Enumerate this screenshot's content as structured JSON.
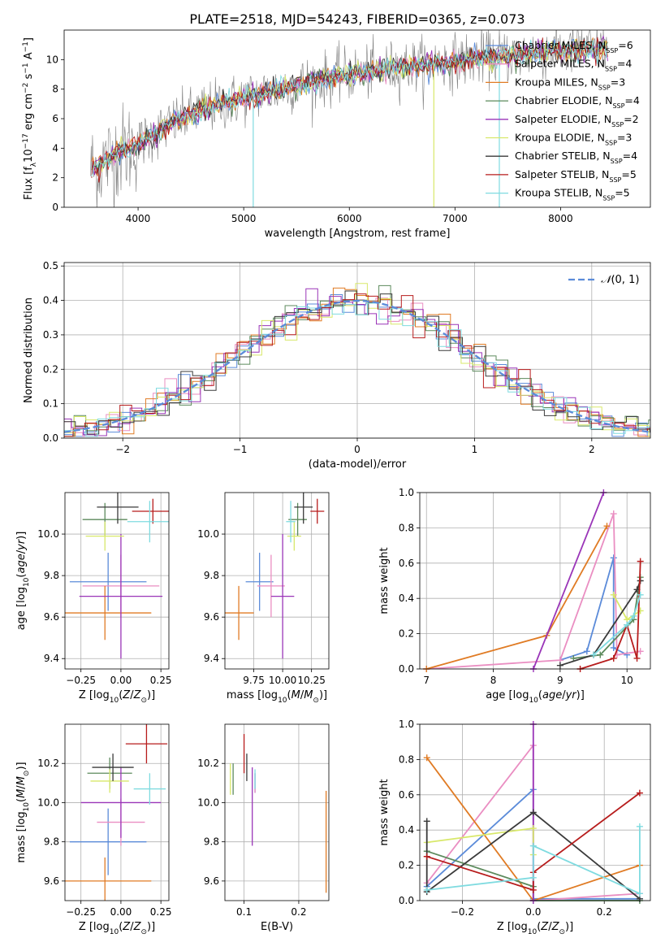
{
  "title": "PLATE=2518, MJD=54243, FIBERID=0365, z=0.073",
  "colors": {
    "Chabrier MILES": "#5b8bd9",
    "Salpeter MILES": "#ea8ec2",
    "Kroupa MILES": "#e07b24",
    "Chabrier ELODIE": "#5c8a5c",
    "Salpeter ELODIE": "#9a35b8",
    "Kroupa ELODIE": "#d8e86a",
    "Chabrier STELIB": "#3a3a3a",
    "Salpeter STELIB": "#b71c1c",
    "Kroupa STELIB": "#7fdbe0",
    "data": "#808080",
    "gauss": "#5b8bd9"
  },
  "chart_data": [
    {
      "id": "spectrum",
      "type": "line",
      "xlabel": "wavelength [Angstrom, rest frame]",
      "ylabel": "Flux [f_λ 10^-17 erg cm^-2 s^-1 A^-1]",
      "xlim": [
        3300,
        8850
      ],
      "ylim": [
        0,
        12
      ],
      "xticks": [
        4000,
        5000,
        6000,
        7000,
        8000
      ],
      "yticks": [
        0,
        2,
        4,
        6,
        8,
        10
      ],
      "grid": false,
      "legend_position": "upper right",
      "legend": [
        "Chabrier MILES, N_SSP=6",
        "Salpeter MILES, N_SSP=4",
        "Kroupa MILES, N_SSP=3",
        "Chabrier ELODIE, N_SSP=4",
        "Salpeter ELODIE, N_SSP=2",
        "Kroupa ELODIE, N_SSP=3",
        "Chabrier STELIB, N_SSP=4",
        "Salpeter STELIB, N_SSP=5",
        "Kroupa STELIB, N_SSP=5"
      ],
      "continuum_model": [
        [
          3550,
          2.6
        ],
        [
          3650,
          2.9
        ],
        [
          3800,
          3.7
        ],
        [
          3950,
          4.1
        ],
        [
          4100,
          4.7
        ],
        [
          4300,
          5.6
        ],
        [
          4600,
          6.6
        ],
        [
          5000,
          7.4
        ],
        [
          5500,
          8.3
        ],
        [
          6000,
          9.0
        ],
        [
          6500,
          9.5
        ],
        [
          7000,
          9.9
        ],
        [
          7500,
          10.3
        ],
        [
          8000,
          10.6
        ],
        [
          8450,
          10.8
        ]
      ]
    },
    {
      "id": "residuals",
      "type": "histogram",
      "xlabel": "(data-model)/error",
      "ylabel": "Normed distribution",
      "xlim": [
        -2.5,
        2.5
      ],
      "ylim": [
        0,
        0.51
      ],
      "xticks": [
        -2,
        -1,
        0,
        1,
        2
      ],
      "yticks": [
        0.0,
        0.1,
        0.2,
        0.3,
        0.4,
        0.5
      ],
      "grid": true,
      "legend_position": "upper right",
      "legend": [
        "N(0, 1)"
      ],
      "bin_width": 0.1
    },
    {
      "id": "age-vs-Z",
      "type": "errorbar",
      "xlabel": "Z [log10(Z/Z⊙)]",
      "ylabel": "age [log10(age/yr)]",
      "xlim": [
        -0.35,
        0.3
      ],
      "ylim": [
        9.35,
        10.2
      ],
      "xticks": [
        -0.25,
        0.0,
        0.25
      ],
      "yticks": [
        9.4,
        9.6,
        9.8,
        10.0
      ],
      "grid": true,
      "points": [
        {
          "model": "Chabrier MILES",
          "x": -0.08,
          "xerr": 0.24,
          "y": 9.77,
          "yerr": 0.14
        },
        {
          "model": "Salpeter MILES",
          "x": 0.0,
          "xerr": 0.24,
          "y": 9.75,
          "yerr": 0.15
        },
        {
          "model": "Kroupa MILES",
          "x": -0.1,
          "xerr": 0.29,
          "y": 9.62,
          "yerr": 0.13
        },
        {
          "model": "Chabrier ELODIE",
          "x": -0.1,
          "xerr": 0.14,
          "y": 10.07,
          "yerr": 0.08
        },
        {
          "model": "Salpeter ELODIE",
          "x": 0.0,
          "xerr": 0.26,
          "y": 9.7,
          "yerr": 0.3
        },
        {
          "model": "Kroupa ELODIE",
          "x": -0.1,
          "xerr": 0.12,
          "y": 9.99,
          "yerr": 0.07
        },
        {
          "model": "Chabrier STELIB",
          "x": -0.02,
          "xerr": 0.13,
          "y": 10.13,
          "yerr": 0.08
        },
        {
          "model": "Salpeter STELIB",
          "x": 0.2,
          "xerr": 0.13,
          "y": 10.11,
          "yerr": 0.06
        },
        {
          "model": "Kroupa STELIB",
          "x": 0.18,
          "xerr": 0.14,
          "y": 10.06,
          "yerr": 0.1
        }
      ]
    },
    {
      "id": "age-vs-mass",
      "type": "errorbar",
      "xlabel": "mass [log10(M/M⊙)]",
      "ylabel": "",
      "xlim": [
        9.5,
        10.4
      ],
      "ylim": [
        9.35,
        10.2
      ],
      "xticks": [
        9.75,
        10.0,
        10.25
      ],
      "yticks": [
        9.4,
        9.6,
        9.8,
        10.0
      ],
      "grid": true,
      "points": [
        {
          "model": "Chabrier MILES",
          "x": 9.8,
          "xerr": 0.12,
          "y": 9.77,
          "yerr": 0.14
        },
        {
          "model": "Salpeter MILES",
          "x": 9.9,
          "xerr": 0.12,
          "y": 9.75,
          "yerr": 0.15
        },
        {
          "model": "Kroupa MILES",
          "x": 9.62,
          "xerr": 0.13,
          "y": 9.62,
          "yerr": 0.13
        },
        {
          "model": "Chabrier ELODIE",
          "x": 10.13,
          "xerr": 0.08,
          "y": 10.07,
          "yerr": 0.08
        },
        {
          "model": "Salpeter ELODIE",
          "x": 10.0,
          "xerr": 0.1,
          "y": 9.7,
          "yerr": 0.3
        },
        {
          "model": "Kroupa ELODIE",
          "x": 10.1,
          "xerr": 0.06,
          "y": 9.99,
          "yerr": 0.07
        },
        {
          "model": "Chabrier STELIB",
          "x": 10.18,
          "xerr": 0.08,
          "y": 10.13,
          "yerr": 0.08
        },
        {
          "model": "Salpeter STELIB",
          "x": 10.3,
          "xerr": 0.06,
          "y": 10.11,
          "yerr": 0.06
        },
        {
          "model": "Kroupa STELIB",
          "x": 10.07,
          "xerr": 0.04,
          "y": 10.06,
          "yerr": 0.1
        }
      ]
    },
    {
      "id": "age-weights",
      "type": "line",
      "xlabel": "age [log10(age/yr)]",
      "ylabel": "mass weight",
      "xlim": [
        6.9,
        10.35
      ],
      "ylim": [
        0,
        1.0
      ],
      "xticks": [
        7,
        8,
        9,
        10
      ],
      "yticks": [
        0.0,
        0.2,
        0.4,
        0.6,
        0.8,
        1.0
      ],
      "grid": true,
      "series": [
        {
          "model": "Chabrier MILES",
          "x": [
            9.0,
            9.4,
            9.8,
            9.8,
            10.0
          ],
          "y": [
            0.05,
            0.1,
            0.63,
            0.12,
            0.08
          ]
        },
        {
          "model": "Salpeter MILES",
          "x": [
            7.0,
            9.0,
            9.8,
            9.85,
            10.2
          ],
          "y": [
            0.0,
            0.05,
            0.88,
            0.08,
            0.1
          ]
        },
        {
          "model": "Kroupa MILES",
          "x": [
            7.0,
            8.8,
            9.7
          ],
          "y": [
            0.0,
            0.19,
            0.81
          ]
        },
        {
          "model": "Chabrier ELODIE",
          "x": [
            9.2,
            9.6,
            10.1,
            10.2
          ],
          "y": [
            0.06,
            0.08,
            0.28,
            0.52
          ]
        },
        {
          "model": "Salpeter ELODIE",
          "x": [
            8.6,
            9.65
          ],
          "y": [
            0.0,
            1.0
          ]
        },
        {
          "model": "Kroupa ELODIE",
          "x": [
            9.8,
            10.0,
            10.2
          ],
          "y": [
            0.42,
            0.28,
            0.33
          ]
        },
        {
          "model": "Chabrier STELIB",
          "x": [
            9.0,
            9.5,
            10.15,
            10.2
          ],
          "y": [
            0.02,
            0.08,
            0.45,
            0.5
          ]
        },
        {
          "model": "Salpeter STELIB",
          "x": [
            9.3,
            9.8,
            10.0,
            10.15,
            10.2
          ],
          "y": [
            0.0,
            0.06,
            0.25,
            0.06,
            0.61
          ]
        },
        {
          "model": "Kroupa STELIB",
          "x": [
            9.5,
            10.0,
            10.1,
            10.2
          ],
          "y": [
            0.08,
            0.25,
            0.3,
            0.42
          ]
        }
      ]
    },
    {
      "id": "mass-vs-Z",
      "type": "errorbar",
      "xlabel": "Z [log10(Z/Z⊙)]",
      "ylabel": "mass [log10(M/M⊙)]",
      "xlim": [
        -0.35,
        0.3
      ],
      "ylim": [
        9.5,
        10.4
      ],
      "xticks": [
        -0.25,
        0.0,
        0.25
      ],
      "yticks": [
        9.6,
        9.8,
        10.0,
        10.2
      ],
      "grid": true,
      "points": [
        {
          "model": "Chabrier MILES",
          "x": -0.08,
          "xerr": 0.24,
          "y": 9.8,
          "yerr": 0.17
        },
        {
          "model": "Salpeter MILES",
          "x": 0.0,
          "xerr": 0.15,
          "y": 9.9,
          "yerr": 0.12
        },
        {
          "model": "Kroupa MILES",
          "x": -0.1,
          "xerr": 0.29,
          "y": 9.6,
          "yerr": 0.12
        },
        {
          "model": "Chabrier ELODIE",
          "x": -0.07,
          "xerr": 0.14,
          "y": 10.15,
          "yerr": 0.08
        },
        {
          "model": "Salpeter ELODIE",
          "x": 0.0,
          "xerr": 0.25,
          "y": 10.0,
          "yerr": 0.18
        },
        {
          "model": "Kroupa ELODIE",
          "x": -0.07,
          "xerr": 0.12,
          "y": 10.11,
          "yerr": 0.06
        },
        {
          "model": "Chabrier STELIB",
          "x": -0.05,
          "xerr": 0.13,
          "y": 10.18,
          "yerr": 0.07
        },
        {
          "model": "Salpeter STELIB",
          "x": 0.16,
          "xerr": 0.13,
          "y": 10.3,
          "yerr": 0.1
        },
        {
          "model": "Kroupa STELIB",
          "x": 0.18,
          "xerr": 0.1,
          "y": 10.07,
          "yerr": 0.08
        }
      ]
    },
    {
      "id": "mass-vs-ebv",
      "type": "errorbar",
      "xlabel": "E(B-V)",
      "ylabel": "",
      "xlim": [
        0.065,
        0.255
      ],
      "ylim": [
        9.5,
        10.4
      ],
      "xticks": [
        0.1,
        0.2
      ],
      "yticks": [
        9.6,
        9.8,
        10.0,
        10.2
      ],
      "grid": true,
      "points": [
        {
          "model": "Chabrier MILES",
          "x": 0.12,
          "xerr": 0.0,
          "y": 10.1,
          "yerr": 0.05
        },
        {
          "model": "Salpeter MILES",
          "x": 0.12,
          "xerr": 0.0,
          "y": 10.1,
          "yerr": 0.05
        },
        {
          "model": "Kroupa MILES",
          "x": 0.25,
          "xerr": 0.0,
          "y": 9.8,
          "yerr": 0.26
        },
        {
          "model": "Chabrier ELODIE",
          "x": 0.08,
          "xerr": 0.0,
          "y": 10.12,
          "yerr": 0.08
        },
        {
          "model": "Salpeter ELODIE",
          "x": 0.115,
          "xerr": 0.0,
          "y": 9.98,
          "yerr": 0.2
        },
        {
          "model": "Kroupa ELODIE",
          "x": 0.075,
          "xerr": 0.0,
          "y": 10.12,
          "yerr": 0.08
        },
        {
          "model": "Chabrier STELIB",
          "x": 0.105,
          "xerr": 0.0,
          "y": 10.18,
          "yerr": 0.07
        },
        {
          "model": "Salpeter STELIB",
          "x": 0.1,
          "xerr": 0.0,
          "y": 10.25,
          "yerr": 0.1
        },
        {
          "model": "Kroupa STELIB",
          "x": 0.12,
          "xerr": 0.0,
          "y": 10.12,
          "yerr": 0.05
        }
      ]
    },
    {
      "id": "Z-weights",
      "type": "line",
      "xlabel": "Z [log10(Z/Z⊙)]",
      "ylabel": "mass weight",
      "xlim": [
        -0.32,
        0.33
      ],
      "ylim": [
        0,
        1.0
      ],
      "xticks": [
        -0.2,
        0.0,
        0.2
      ],
      "yticks": [
        0.0,
        0.2,
        0.4,
        0.6,
        0.8,
        1.0
      ],
      "grid": true,
      "series": [
        {
          "model": "Chabrier MILES",
          "x": [
            -0.3,
            0.0,
            0.0,
            0.3
          ],
          "y": [
            0.08,
            0.63,
            0.01,
            0.01
          ]
        },
        {
          "model": "Salpeter MILES",
          "x": [
            -0.3,
            0.0,
            0.0,
            0.3
          ],
          "y": [
            0.1,
            0.88,
            0.0,
            0.04
          ]
        },
        {
          "model": "Kroupa MILES",
          "x": [
            -0.3,
            0.0,
            0.3
          ],
          "y": [
            0.81,
            0.0,
            0.2
          ]
        },
        {
          "model": "Chabrier ELODIE",
          "x": [
            -0.3,
            0.0,
            0.0,
            0.3
          ],
          "y": [
            0.28,
            0.08,
            0.0,
            0.0
          ]
        },
        {
          "model": "Salpeter ELODIE",
          "x": [
            0.0,
            0.0
          ],
          "y": [
            0.0,
            1.0
          ]
        },
        {
          "model": "Kroupa ELODIE",
          "x": [
            -0.3,
            0.0,
            0.0
          ],
          "y": [
            0.33,
            0.41,
            0.26
          ]
        },
        {
          "model": "Chabrier STELIB",
          "x": [
            -0.3,
            -0.3,
            0.0,
            0.3
          ],
          "y": [
            0.45,
            0.05,
            0.5,
            0.01
          ]
        },
        {
          "model": "Salpeter STELIB",
          "x": [
            -0.3,
            0.0,
            0.0,
            0.3
          ],
          "y": [
            0.25,
            0.06,
            0.16,
            0.61
          ]
        },
        {
          "model": "Kroupa STELIB",
          "x": [
            -0.3,
            0.0,
            0.0,
            0.3,
            0.3
          ],
          "y": [
            0.06,
            0.13,
            0.31,
            0.04,
            0.42
          ]
        }
      ]
    }
  ]
}
